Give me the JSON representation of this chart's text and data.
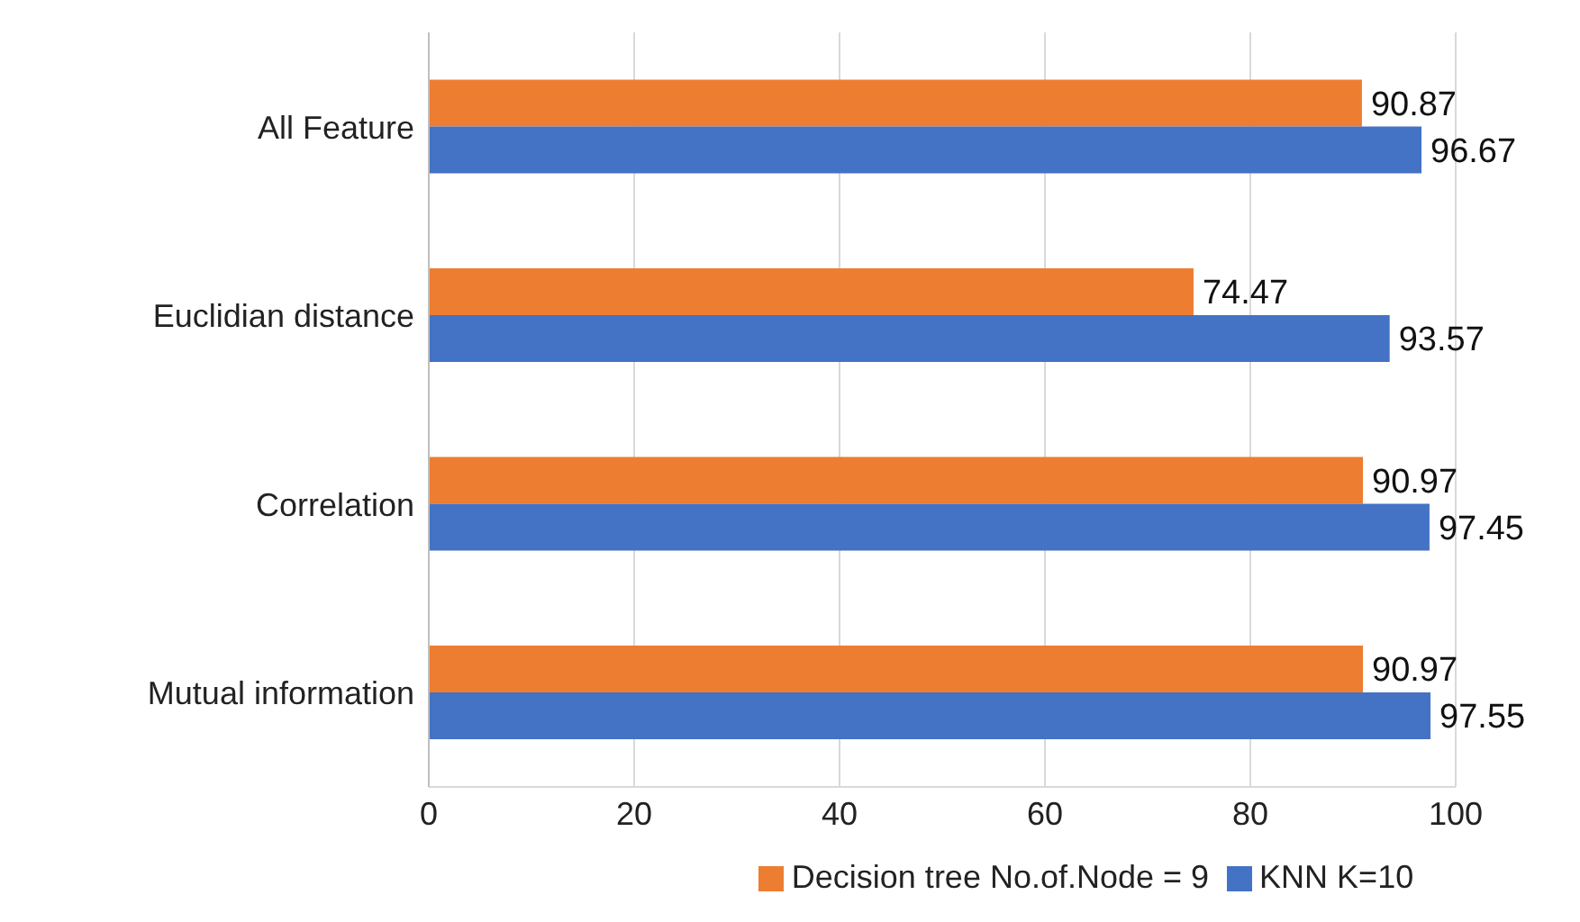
{
  "chart_data": {
    "type": "bar",
    "orientation": "horizontal",
    "categories": [
      "All Feature",
      "Euclidian distance",
      "Correlation",
      "Mutual information"
    ],
    "series": [
      {
        "name": "Decision tree No.of.Node = 9",
        "color": "#ed7d31",
        "values": [
          90.87,
          74.47,
          90.97,
          90.97
        ]
      },
      {
        "name": "KNN K=10",
        "color": "#4472c4",
        "values": [
          96.67,
          93.57,
          97.45,
          97.55
        ]
      }
    ],
    "xlim": [
      0,
      100
    ],
    "xticks": [
      0,
      20,
      40,
      60,
      80,
      100
    ],
    "grid": "x",
    "legend": "bottom",
    "data_labels": true
  }
}
